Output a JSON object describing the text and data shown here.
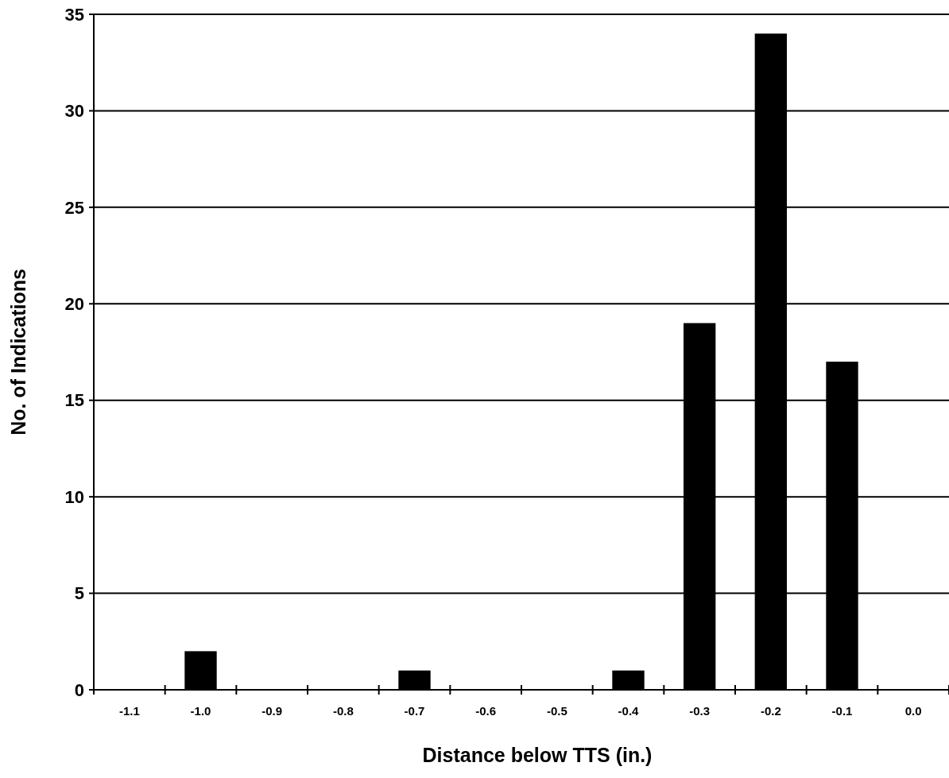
{
  "chart_data": {
    "type": "bar",
    "xlabel": "Distance below TTS (in.)",
    "ylabel": "No. of Indications",
    "categories": [
      "-1.1",
      "-1.0",
      "-0.9",
      "-0.8",
      "-0.7",
      "-0.6",
      "-0.5",
      "-0.4",
      "-0.3",
      "-0.2",
      "-0.1",
      "0.0"
    ],
    "values": [
      0,
      2,
      0,
      0,
      1,
      0,
      0,
      1,
      19,
      34,
      17,
      0
    ],
    "color": "#000000",
    "ylim": [
      0,
      35
    ],
    "yticks": [
      0,
      5,
      10,
      15,
      20,
      25,
      30,
      35
    ],
    "grid": "y"
  }
}
